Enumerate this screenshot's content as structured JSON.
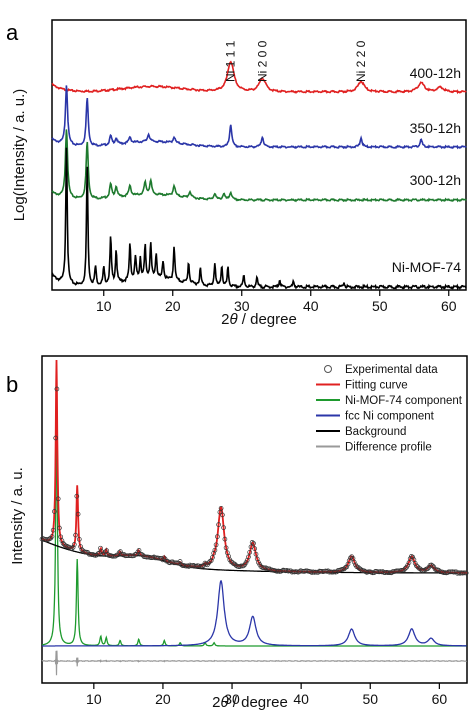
{
  "chart_data": [
    {
      "panel": "a",
      "type": "line",
      "xlabel": "2θ / degree",
      "ylabel": "Log(Intensity / a. u.)",
      "xlim": [
        2.5,
        62.5
      ],
      "xticks": [
        10,
        20,
        30,
        40,
        50,
        60
      ],
      "peak_labels": [
        {
          "text": "Ni 1 1 1",
          "x": 28.4
        },
        {
          "text": "Ni 2 0 0",
          "x": 33.0
        },
        {
          "text": "Ni 2 2 0",
          "x": 47.3
        }
      ],
      "series": [
        {
          "name": "400-12h",
          "color": "#e02020",
          "offset": 3,
          "peaks": [
            [
              28.4,
              1.0
            ],
            [
              33.0,
              0.45
            ],
            [
              47.3,
              0.35
            ],
            [
              56.0,
              0.3
            ],
            [
              58.8,
              0.15
            ]
          ]
        },
        {
          "name": "350-12h",
          "color": "#2b36a8",
          "offset": 2,
          "peaks": [
            [
              4.6,
              2.0
            ],
            [
              7.6,
              1.6
            ],
            [
              11.0,
              0.3
            ],
            [
              11.8,
              0.2
            ],
            [
              13.8,
              0.2
            ],
            [
              16.5,
              0.25
            ],
            [
              20.2,
              0.2
            ],
            [
              28.4,
              0.75
            ],
            [
              33.0,
              0.35
            ],
            [
              47.3,
              0.3
            ],
            [
              56.0,
              0.25
            ]
          ]
        },
        {
          "name": "300-12h",
          "color": "#1e7a2e",
          "offset": 1,
          "peaks": [
            [
              4.6,
              2.3
            ],
            [
              7.6,
              1.9
            ],
            [
              11.0,
              0.45
            ],
            [
              11.8,
              0.35
            ],
            [
              13.8,
              0.35
            ],
            [
              16.0,
              0.4
            ],
            [
              16.8,
              0.45
            ],
            [
              20.2,
              0.35
            ],
            [
              22.5,
              0.2
            ],
            [
              26.1,
              0.2
            ],
            [
              27.4,
              0.2
            ],
            [
              28.4,
              0.25
            ]
          ]
        },
        {
          "name": "Ni-MOF-74",
          "color": "#000000",
          "offset": 0,
          "peaks": [
            [
              4.6,
              3.0
            ],
            [
              7.6,
              2.6
            ],
            [
              8.8,
              0.4
            ],
            [
              10.0,
              0.35
            ],
            [
              11.0,
              1.0
            ],
            [
              11.8,
              0.7
            ],
            [
              13.8,
              0.8
            ],
            [
              14.6,
              0.5
            ],
            [
              15.3,
              0.45
            ],
            [
              16.0,
              0.7
            ],
            [
              16.8,
              0.75
            ],
            [
              17.6,
              0.55
            ],
            [
              18.6,
              0.4
            ],
            [
              20.2,
              0.75
            ],
            [
              22.3,
              0.45
            ],
            [
              24.0,
              0.35
            ],
            [
              26.1,
              0.5
            ],
            [
              27.1,
              0.45
            ],
            [
              28.0,
              0.4
            ],
            [
              30.3,
              0.25
            ],
            [
              32.2,
              0.2
            ],
            [
              35.5,
              0.15
            ],
            [
              37.5,
              0.12
            ],
            [
              44.8,
              0.1
            ]
          ]
        }
      ]
    },
    {
      "panel": "b",
      "type": "line",
      "xlabel": "2θ / degree",
      "ylabel": "Intensity / a. u.",
      "xlim": [
        2.5,
        64
      ],
      "xticks": [
        10,
        20,
        30,
        40,
        50,
        60
      ],
      "legend": [
        {
          "name": "Experimental data",
          "color": "#555555",
          "marker": "circle"
        },
        {
          "name": "Fitting curve",
          "color": "#e02020"
        },
        {
          "name": "Ni-MOF-74 component",
          "color": "#1e9a2e"
        },
        {
          "name": "fcc Ni component",
          "color": "#2b36a8"
        },
        {
          "name": "Background",
          "color": "#000000"
        },
        {
          "name": "Difference profile",
          "color": "#999999"
        }
      ],
      "mof_peaks": [
        [
          4.6,
          9.0
        ],
        [
          7.6,
          3.2
        ],
        [
          11.0,
          0.35
        ],
        [
          11.8,
          0.3
        ],
        [
          13.8,
          0.2
        ],
        [
          16.5,
          0.25
        ],
        [
          20.2,
          0.2
        ],
        [
          22.5,
          0.12
        ],
        [
          26.1,
          0.12
        ],
        [
          27.4,
          0.12
        ]
      ],
      "ni_peaks": [
        [
          28.4,
          1.35
        ],
        [
          33.0,
          0.6
        ],
        [
          47.3,
          0.35
        ],
        [
          56.0,
          0.35
        ],
        [
          58.8,
          0.15
        ]
      ]
    }
  ]
}
